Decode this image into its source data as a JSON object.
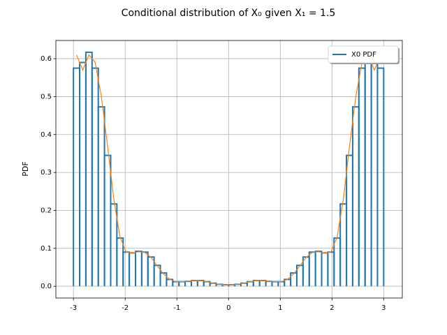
{
  "chart_data": {
    "type": "histogram",
    "title": "Conditional distribution of X₀ given X₁ = 1.5",
    "ylabel": "PDF",
    "name": "X0 PDF",
    "color": "#1f77b4",
    "bins": [
      -3,
      -2.88,
      -2.76,
      -2.64,
      -2.52,
      -2.4,
      -2.28,
      -2.16,
      -2.04,
      -1.92,
      -1.8,
      -1.68,
      -1.56,
      -1.44,
      -1.32,
      -1.2,
      -1.08,
      -0.96,
      -0.84,
      -0.72,
      -0.6,
      -0.48,
      -0.36,
      -0.24,
      -0.12,
      0,
      0.12,
      0.24,
      0.36,
      0.48,
      0.6,
      0.72,
      0.84,
      0.96,
      1.08,
      1.2,
      1.32,
      1.44,
      1.56,
      1.68,
      1.8,
      1.92,
      2.04,
      2.16,
      2.28,
      2.4,
      2.52,
      2.64,
      2.76,
      2.88,
      3
    ],
    "values": [
      0.575,
      0.59,
      0.617,
      0.575,
      0.473,
      0.345,
      0.217,
      0.127,
      0.09,
      0.088,
      0.092,
      0.09,
      0.077,
      0.055,
      0.035,
      0.018,
      0.012,
      0.012,
      0.013,
      0.015,
      0.015,
      0.012,
      0.008,
      0.005,
      0.004,
      0.004,
      0.005,
      0.008,
      0.012,
      0.015,
      0.015,
      0.013,
      0.012,
      0.012,
      0.018,
      0.035,
      0.055,
      0.077,
      0.09,
      0.092,
      0.088,
      0.09,
      0.127,
      0.217,
      0.345,
      0.473,
      0.575,
      0.617,
      0.59,
      0.575
    ],
    "curve": {
      "color": "#ff7f0e",
      "x": [
        -2.94,
        -2.82,
        -2.7,
        -2.58,
        -2.46,
        -2.34,
        -2.22,
        -2.1,
        -1.98,
        -1.86,
        -1.74,
        -1.62,
        -1.5,
        -1.38,
        -1.26,
        -1.14,
        -1.02,
        -0.9,
        -0.78,
        -0.66,
        -0.54,
        -0.42,
        -0.3,
        -0.18,
        -0.06,
        0.06,
        0.18,
        0.3,
        0.42,
        0.54,
        0.66,
        0.78,
        0.9,
        1.02,
        1.14,
        1.26,
        1.38,
        1.5,
        1.62,
        1.74,
        1.86,
        1.98,
        2.1,
        2.22,
        2.34,
        2.46,
        2.58,
        2.7,
        2.82,
        2.94
      ],
      "values": [
        0.61,
        0.57,
        0.61,
        0.59,
        0.5,
        0.37,
        0.23,
        0.13,
        0.09,
        0.087,
        0.091,
        0.089,
        0.076,
        0.054,
        0.033,
        0.018,
        0.012,
        0.012,
        0.013,
        0.015,
        0.015,
        0.012,
        0.008,
        0.005,
        0.004,
        0.004,
        0.005,
        0.008,
        0.012,
        0.015,
        0.015,
        0.013,
        0.012,
        0.012,
        0.018,
        0.033,
        0.054,
        0.076,
        0.089,
        0.091,
        0.087,
        0.09,
        0.13,
        0.23,
        0.37,
        0.5,
        0.59,
        0.61,
        0.57,
        0.61
      ]
    },
    "xlim": [
      -3.34,
      3.36
    ],
    "ylim": [
      -0.031,
      0.648
    ],
    "xticks": [
      -3,
      -2,
      -1,
      0,
      1,
      2,
      3
    ],
    "yticks": [
      {
        "value": 0,
        "label": "0.0"
      },
      0.1,
      0.2,
      0.3,
      0.4,
      0.5,
      0.6
    ],
    "grid": true,
    "legend_loc": "upper right"
  }
}
